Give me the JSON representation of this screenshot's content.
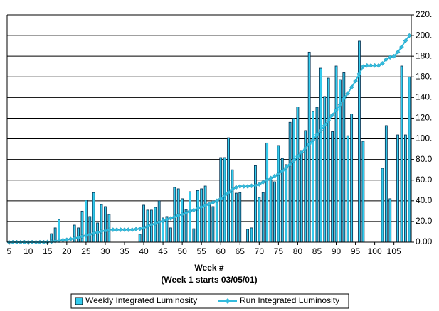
{
  "chart_data": {
    "type": "bar-line",
    "x_label": "Week  #",
    "x_sublabel": "(Week 1 starts 03/05/01)",
    "x": [
      5,
      6,
      7,
      8,
      9,
      10,
      11,
      12,
      13,
      14,
      15,
      16,
      17,
      18,
      19,
      20,
      21,
      22,
      23,
      24,
      25,
      26,
      27,
      28,
      29,
      30,
      31,
      32,
      33,
      34,
      35,
      36,
      37,
      38,
      39,
      40,
      41,
      42,
      43,
      44,
      45,
      46,
      47,
      48,
      49,
      50,
      51,
      52,
      53,
      54,
      55,
      56,
      57,
      58,
      59,
      60,
      61,
      62,
      63,
      64,
      65,
      66,
      67,
      68,
      69,
      70,
      71,
      72,
      73,
      74,
      75,
      76,
      77,
      78,
      79,
      80,
      81,
      82,
      83,
      84,
      85,
      86,
      87,
      88,
      89,
      90,
      91,
      92,
      93,
      94,
      95,
      96,
      97,
      98,
      99,
      100,
      101,
      102,
      103,
      104,
      105,
      106,
      107,
      108,
      109
    ],
    "xlim": [
      4.5,
      109.5
    ],
    "xticks": [
      5,
      10,
      15,
      20,
      25,
      30,
      35,
      40,
      45,
      50,
      55,
      60,
      65,
      70,
      75,
      80,
      85,
      90,
      95,
      100,
      105
    ],
    "ylim": [
      0,
      220
    ],
    "yticks": [
      {
        "value": 0,
        "label": "0.00"
      },
      {
        "value": 20,
        "label": "20.0"
      },
      {
        "value": 40,
        "label": "40.0"
      },
      {
        "value": 60,
        "label": "60.0"
      },
      {
        "value": 80,
        "label": "80.0"
      },
      {
        "value": 100,
        "label": "100."
      },
      {
        "value": 120,
        "label": "120."
      },
      {
        "value": 140,
        "label": "140."
      },
      {
        "value": 160,
        "label": "160."
      },
      {
        "value": 180,
        "label": "180."
      },
      {
        "value": 200,
        "label": "200."
      },
      {
        "value": 220,
        "label": "220."
      }
    ],
    "grid": true,
    "series": [
      {
        "name": "Weekly Integrated Luminosity",
        "kind": "bar",
        "color": "#33ccee",
        "values": [
          null,
          null,
          null,
          null,
          null,
          null,
          null,
          null,
          null,
          null,
          null,
          8.2,
          13.8,
          22,
          null,
          null,
          null,
          16.5,
          13.8,
          30,
          40.6,
          24.8,
          48,
          18.6,
          36.4,
          34.4,
          26.8,
          null,
          null,
          null,
          null,
          null,
          null,
          null,
          7.6,
          35.8,
          31,
          31,
          33.7,
          40,
          23.4,
          24.8,
          13.8,
          53,
          51.6,
          42,
          31.6,
          48.8,
          13,
          50,
          51.6,
          54.3,
          37,
          34.4,
          40,
          81.8,
          81.8,
          101,
          70,
          47.4,
          48,
          null,
          12.4,
          13.8,
          74,
          43.3,
          48,
          96,
          60,
          58.4,
          93.5,
          81,
          75,
          116,
          120,
          131,
          88.7,
          108,
          184,
          126.5,
          130.6,
          168.4,
          141,
          158.8,
          107,
          170.5,
          157.4,
          164,
          103,
          124,
          null,
          194.6,
          97.6,
          null,
          null,
          null,
          null,
          71.5,
          112.8,
          42,
          null,
          103.8,
          170.5,
          103.8,
          160
        ]
      },
      {
        "name": "Run Integrated Luminosity",
        "kind": "line",
        "color": "#33bbdd",
        "values": [
          0,
          0,
          0,
          0,
          0,
          0,
          0,
          0,
          0,
          0,
          0.2,
          0.5,
          1,
          1.5,
          2,
          2.3,
          3,
          3.5,
          4.5,
          5.5,
          6.5,
          7.5,
          8.5,
          9.5,
          10.5,
          11,
          12,
          12,
          12,
          12,
          12,
          12,
          12,
          12.5,
          13,
          14,
          15.5,
          17,
          18,
          19.5,
          20.5,
          22,
          23,
          24.5,
          26,
          27,
          28.5,
          30,
          31,
          32.5,
          34,
          35.5,
          37,
          38.5,
          40,
          42,
          45,
          48,
          51,
          53,
          54,
          54,
          54,
          54.5,
          55,
          56,
          58,
          60,
          62,
          64,
          66,
          69,
          72,
          75,
          79,
          83,
          87,
          91,
          95,
          99,
          104,
          108,
          113,
          118,
          123,
          128,
          133,
          139,
          144,
          150,
          156,
          163,
          170,
          171,
          171,
          171,
          171,
          173,
          177,
          179,
          180,
          184,
          189,
          195,
          200
        ]
      }
    ]
  }
}
